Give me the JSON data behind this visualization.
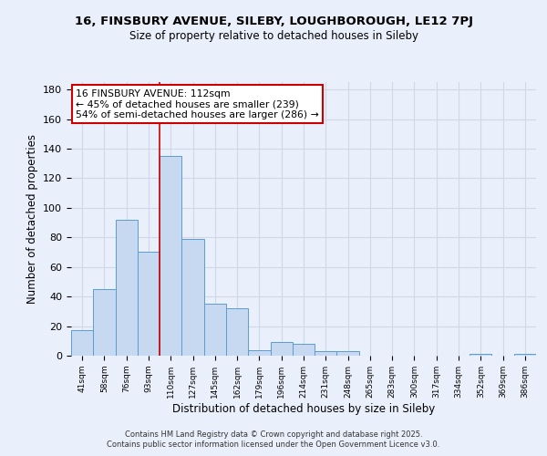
{
  "title": "16, FINSBURY AVENUE, SILEBY, LOUGHBOROUGH, LE12 7PJ",
  "subtitle": "Size of property relative to detached houses in Sileby",
  "xlabel": "Distribution of detached houses by size in Sileby",
  "ylabel": "Number of detached properties",
  "bar_labels": [
    "41sqm",
    "58sqm",
    "76sqm",
    "93sqm",
    "110sqm",
    "127sqm",
    "145sqm",
    "162sqm",
    "179sqm",
    "196sqm",
    "214sqm",
    "231sqm",
    "248sqm",
    "265sqm",
    "283sqm",
    "300sqm",
    "317sqm",
    "334sqm",
    "352sqm",
    "369sqm",
    "386sqm"
  ],
  "bar_values": [
    17,
    45,
    92,
    70,
    135,
    79,
    35,
    32,
    4,
    9,
    8,
    3,
    3,
    0,
    0,
    0,
    0,
    0,
    1,
    0,
    1
  ],
  "bar_color": "#c6d9f1",
  "bar_edge_color": "#5b9bd5",
  "grid_color": "#d0d8e8",
  "bg_color": "#eaf0fb",
  "red_line_index": 4,
  "annotation_line1": "16 FINSBURY AVENUE: 112sqm",
  "annotation_line2": "← 45% of detached houses are smaller (239)",
  "annotation_line3": "54% of semi-detached houses are larger (286) →",
  "annotation_box_color": "#ffffff",
  "annotation_box_edge": "#cc0000",
  "footer_line1": "Contains HM Land Registry data © Crown copyright and database right 2025.",
  "footer_line2": "Contains public sector information licensed under the Open Government Licence v3.0.",
  "ylim": [
    0,
    185
  ],
  "yticks": [
    0,
    20,
    40,
    60,
    80,
    100,
    120,
    140,
    160,
    180
  ]
}
